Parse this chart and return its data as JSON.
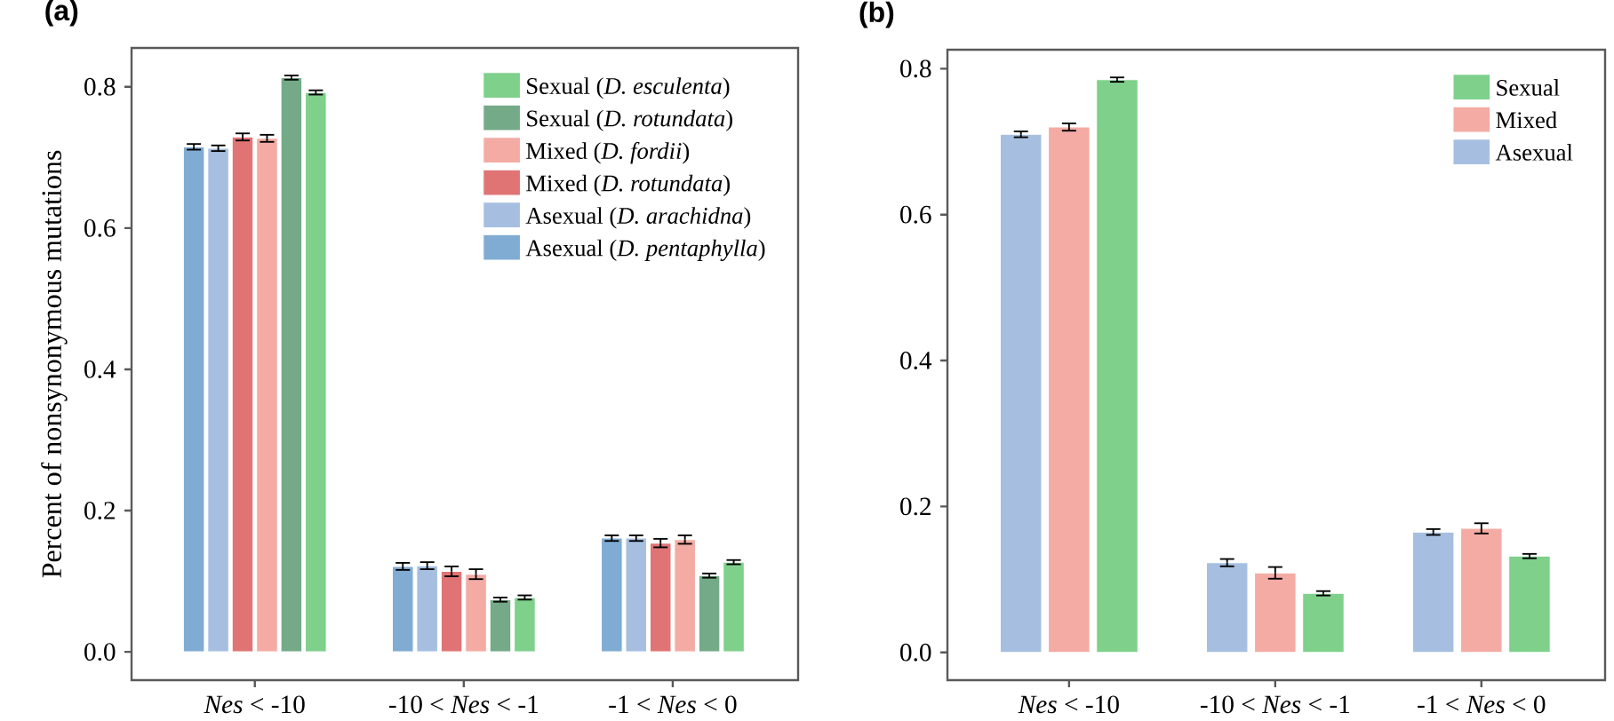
{
  "chart_data": [
    {
      "type": "bar",
      "title": "(a)",
      "ylabel": "Percent of nonsynonymous mutations",
      "categories": [
        "*Nes* < -10",
        "-10 < *Nes* < -1",
        "-1 < *Nes* < 0"
      ],
      "series": [
        {
          "name": "Asexual (*D. pentaphylla*)",
          "color": "#80acd3",
          "values": [
            0.715,
            0.121,
            0.161
          ],
          "errors": [
            0.004,
            0.005,
            0.004
          ]
        },
        {
          "name": "Asexual (*D. arachidna*)",
          "color": "#a6bfe1",
          "values": [
            0.713,
            0.122,
            0.161
          ],
          "errors": [
            0.004,
            0.005,
            0.004
          ]
        },
        {
          "name": "Mixed (*D. rotundata*)",
          "color": "#e07475",
          "values": [
            0.729,
            0.114,
            0.154
          ],
          "errors": [
            0.005,
            0.007,
            0.006
          ]
        },
        {
          "name": "Mixed (*D. fordii*)",
          "color": "#f3aba4",
          "values": [
            0.727,
            0.11,
            0.159
          ],
          "errors": [
            0.005,
            0.007,
            0.006
          ]
        },
        {
          "name": "Sexual (*D. rotundata*)",
          "color": "#74aa88",
          "values": [
            0.813,
            0.074,
            0.108
          ],
          "errors": [
            0.003,
            0.003,
            0.003
          ]
        },
        {
          "name": "Sexual (*D. esculenta*)",
          "color": "#7ed08b",
          "values": [
            0.792,
            0.077,
            0.127
          ],
          "errors": [
            0.003,
            0.003,
            0.003
          ]
        }
      ],
      "ylim": [
        -0.04,
        0.855
      ],
      "yticks": [
        {
          "value": 0,
          "label": "0.0"
        },
        {
          "value": 0.2,
          "label": "0.2"
        },
        {
          "value": 0.4,
          "label": "0.4"
        },
        {
          "value": 0.6,
          "label": "0.6"
        },
        {
          "value": 0.8,
          "label": "0.8"
        }
      ],
      "legend": "top right"
    },
    {
      "type": "bar",
      "title": "(b)",
      "categories": [
        "*Nes* < -10",
        "-10 < *Nes* < -1",
        "-1 < *Nes* < 0"
      ],
      "series": [
        {
          "name": "Asexual",
          "color": "#a6bfe1",
          "values": [
            0.71,
            0.123,
            0.165
          ],
          "errors": [
            0.004,
            0.005,
            0.004
          ]
        },
        {
          "name": "Mixed",
          "color": "#f3aba4",
          "values": [
            0.72,
            0.109,
            0.17
          ],
          "errors": [
            0.005,
            0.008,
            0.007
          ]
        },
        {
          "name": "Sexual",
          "color": "#7ed08b",
          "values": [
            0.785,
            0.081,
            0.132
          ],
          "errors": [
            0.003,
            0.003,
            0.003
          ]
        }
      ],
      "ylim": [
        -0.038,
        0.826
      ],
      "yticks": [
        {
          "value": 0,
          "label": "0.0"
        },
        {
          "value": 0.2,
          "label": "0.2"
        },
        {
          "value": 0.4,
          "label": "0.4"
        },
        {
          "value": 0.6,
          "label": "0.6"
        },
        {
          "value": 0.8,
          "label": "0.8"
        }
      ],
      "legend": "top right"
    }
  ]
}
